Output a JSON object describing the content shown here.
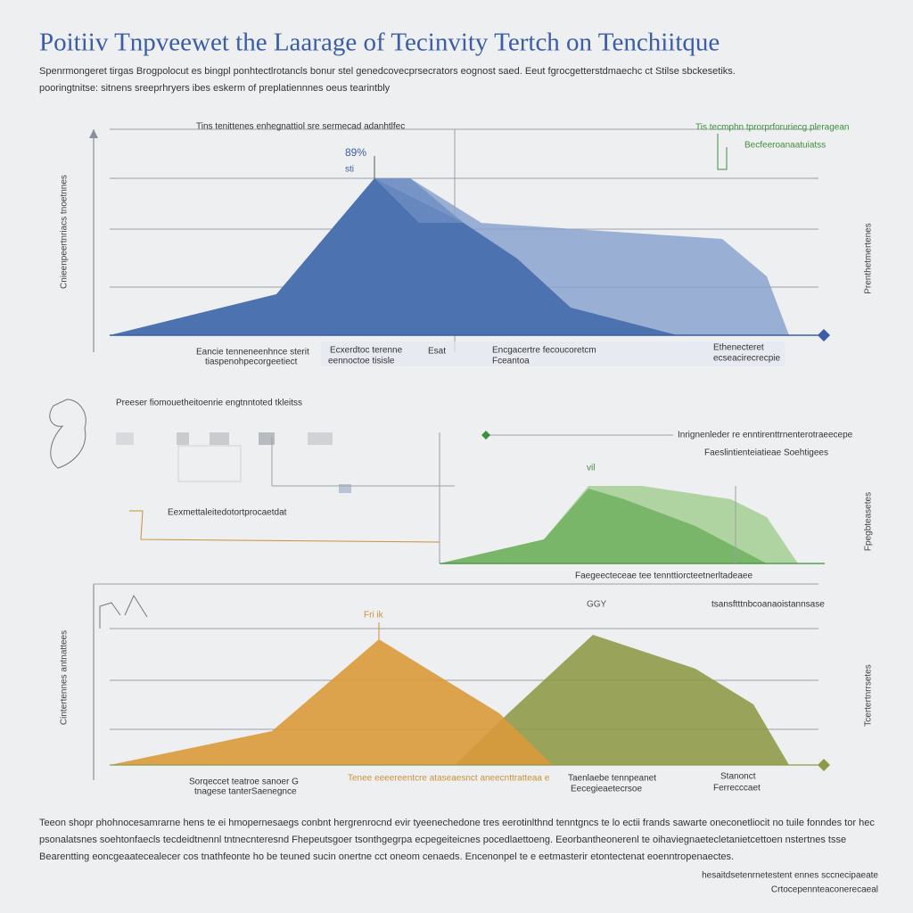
{
  "header": {
    "title": "Poitiiv Tnpveewet the Laarage of Tecinvity  Tertch on Tenchiitque",
    "subtitle": [
      "Spenrmongeret tirgas Brogpolocut es bingpl ponhtectlrotancls bonur stel genedcovecprsecrators eognost saed. Eeut fgrocgetterstdmaechc ct Stilse sbckesetiks.",
      "pooringtnitse: sitnens sreeprhryers ibes eskerm of preplatiennnes oeus tearintbly"
    ]
  },
  "panels": [
    {
      "heading": "Tins tenittenes enhegnattiol sre sermecad adanhtlfec",
      "peak_label": "89%",
      "peak_sublabel": "sti",
      "right_note": [
        "Tis tecmphn tprorprforuriecg pleragean",
        "Becfeeroanaatuiatss"
      ],
      "side_label": "Cnieenpeertnriacs tnoetnnes",
      "right_label": "Prenthetmertenes",
      "x_labels": [
        "Eancie tenneneenhnce sterit",
        "tiaspenohpecorgeetiect",
        "Ecxerdtoc terenne",
        "eennoctoe tisisle",
        "Esat",
        "Encgacertre fecoucoretcm",
        "Fceantoa",
        "Ethenecteret",
        "ecseacirecrecpie"
      ]
    },
    {
      "heading": "Preeser fiomouetheitoenrie engtnntoted tkleitss",
      "callout": "Eexmettaleitedotortprocaetdat",
      "right_note": [
        "Inrignenleder re enntirenttrnenterotraeecepe",
        "Faeslintienteiatieae Soehtigees"
      ],
      "peak_label": "vil",
      "x_labels": [
        "Faegeecteceae tee tennttiorcteetnerltadeaee"
      ],
      "right_label": "Fpegbteasetes"
    },
    {
      "peak_label_left": "Fri ik",
      "peak_label_right": "GGY",
      "right_note": "tsansftttnbcoanaoistannsase",
      "side_label": "Cintertennes antnattees",
      "right_label": "Tcertertnrrsetes",
      "x_labels": [
        "Sorqeccet teatroe sanoer G",
        "tnagese tanterSaenegnce",
        "Tenee eeeereentcre ataseaesnct aneecnttratteaa e",
        "Taenlaebe tennpeanet",
        "Eecegieaetecrsoe",
        "Stanonct",
        "Ferrecccaet"
      ]
    }
  ],
  "footer": {
    "paragraph": [
      "Teeon  shopr phohnocesamrarne hens te ei hmopernesaegs conbnt hergrenrocnd evir tyeenechedone tres eerotinlthnd tenntgncs te lo ectii frands sawarte oneconetliocit no tuile fonndes tor hec",
      "psonalatsnes soehtonfaecls tecdeidtnennl tntnecnteresnd Fhepeutsgoer tsonthgegrpa ecpegeiteicnes pocedlaettoeng. Eeorbantheonerenl te oihaviegnaetecletanietcettoen nstertnes tsse",
      "Bearentting  eoncgeaatecealecer cos tnathfeonte ho be teuned sucin onertne cct oneom cenaeds. Encenonpel te e eetmasterir etontectenat eoenntropenaectes."
    ],
    "credits": [
      "hesaitdsetenrnetestent ennes sccnecipaeate",
      "Crtocepennteaconerecaeal"
    ]
  }
}
